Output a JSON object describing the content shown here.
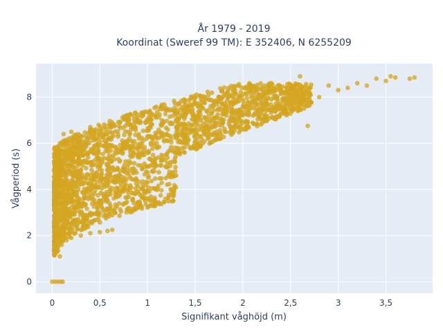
{
  "chart_data": {
    "type": "scatter",
    "title_line1": "År 1979 - 2019",
    "title_line2": "Koordinat (Sweref 99 TM): E 352406, N 6255209",
    "xlabel": "Signifikant våghöjd (m)",
    "ylabel": "Vågperiod (s)",
    "xlim": [
      -0.17,
      3.99
    ],
    "ylim": [
      -0.5,
      9.45
    ],
    "x_ticks": [
      0,
      0.5,
      1,
      1.5,
      2,
      2.5,
      3,
      3.5
    ],
    "x_tick_labels": [
      "0",
      "0,5",
      "1",
      "1,5",
      "2",
      "2,5",
      "3",
      "3,5"
    ],
    "y_ticks": [
      0,
      2,
      4,
      6,
      8
    ],
    "y_tick_labels": [
      "0",
      "2",
      "4",
      "6",
      "8"
    ],
    "grid": true,
    "legend": "none",
    "colors": {
      "marker": "#d4a520",
      "plot_background": "#e5ecf6",
      "grid": "#ffffff",
      "text": "#2a3f5f"
    },
    "series": [
      {
        "values_note": "",
        "points": [
          [
            0.0,
            0.0
          ],
          [
            0.03,
            0.0
          ],
          [
            0.06,
            0.0
          ],
          [
            0.09,
            0.0
          ],
          [
            0.11,
            0.0
          ],
          [
            0.05,
            1.3
          ],
          [
            0.08,
            1.1
          ],
          [
            0.1,
            1.6
          ],
          [
            0.15,
            1.8
          ],
          [
            0.2,
            1.9
          ],
          [
            0.3,
            2.0
          ],
          [
            0.4,
            2.1
          ],
          [
            0.5,
            2.15
          ],
          [
            0.58,
            2.2
          ],
          [
            0.63,
            2.25
          ],
          [
            0.05,
            2.5
          ],
          [
            0.07,
            3.2
          ],
          [
            0.05,
            4.0
          ],
          [
            0.06,
            4.8
          ],
          [
            0.08,
            5.6
          ],
          [
            0.1,
            6.0
          ],
          [
            0.12,
            5.2
          ],
          [
            0.15,
            4.4
          ],
          [
            0.2,
            3.6
          ],
          [
            0.25,
            4.8
          ],
          [
            0.3,
            5.5
          ],
          [
            0.35,
            6.3
          ],
          [
            0.4,
            6.6
          ],
          [
            0.45,
            5.9
          ],
          [
            0.5,
            5.0
          ],
          [
            0.55,
            4.2
          ],
          [
            0.6,
            6.2
          ],
          [
            0.7,
            5.6
          ],
          [
            0.75,
            4.8
          ],
          [
            0.8,
            6.1
          ],
          [
            0.9,
            5.4
          ],
          [
            1.0,
            6.3
          ],
          [
            1.05,
            4.8
          ],
          [
            1.1,
            5.8
          ],
          [
            1.2,
            6.4
          ],
          [
            1.3,
            5.6
          ],
          [
            1.4,
            6.6
          ],
          [
            1.5,
            6.9
          ],
          [
            1.55,
            5.9
          ],
          [
            1.6,
            7.1
          ],
          [
            1.7,
            6.8
          ],
          [
            1.8,
            7.4
          ],
          [
            1.9,
            7.0
          ],
          [
            2.0,
            7.6
          ],
          [
            2.05,
            6.9
          ],
          [
            2.1,
            7.8
          ],
          [
            2.2,
            7.5
          ],
          [
            2.3,
            7.9
          ],
          [
            2.4,
            7.7
          ],
          [
            2.5,
            8.1
          ],
          [
            2.6,
            7.9
          ],
          [
            2.7,
            8.2
          ],
          [
            2.8,
            8.0
          ],
          [
            2.9,
            8.5
          ],
          [
            3.0,
            8.3
          ],
          [
            3.1,
            8.4
          ],
          [
            3.2,
            8.6
          ],
          [
            3.3,
            8.5
          ],
          [
            3.4,
            8.8
          ],
          [
            3.5,
            8.7
          ],
          [
            3.55,
            8.9
          ],
          [
            3.6,
            8.85
          ],
          [
            3.75,
            8.8
          ],
          [
            3.8,
            8.85
          ],
          [
            2.68,
            6.75
          ],
          [
            1.0,
            4.3
          ],
          [
            1.3,
            4.6
          ],
          [
            0.9,
            3.9
          ],
          [
            0.7,
            3.7
          ],
          [
            0.35,
            2.7
          ],
          [
            0.2,
            6.5
          ],
          [
            0.12,
            6.4
          ],
          [
            0.4,
            6.7
          ],
          [
            2.6,
            8.9
          ],
          [
            2.3,
            8.6
          ],
          [
            1.85,
            8.0
          ],
          [
            1.75,
            7.9
          ]
        ]
      }
    ]
  }
}
